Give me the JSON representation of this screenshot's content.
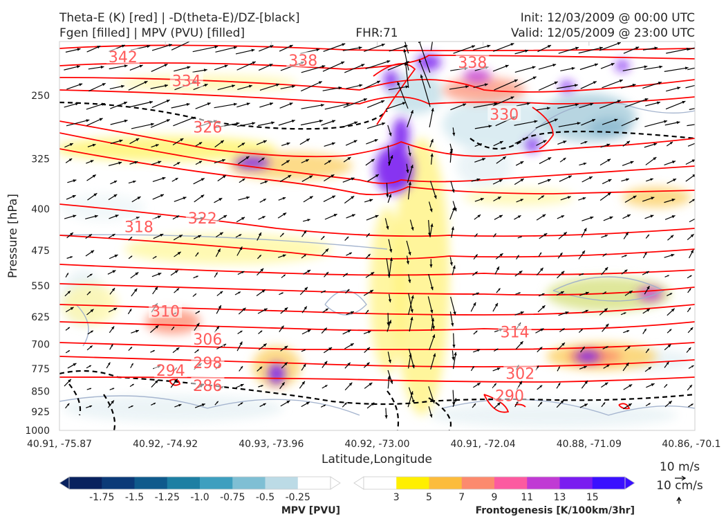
{
  "header": {
    "title_left_1": "Theta-E (K) [red] | -D(theta-E)/DZ-[black]",
    "title_left_2": "Fgen [filled] | MPV (PVU) [filled]",
    "title_center": "FHR:71",
    "title_right_1": "Init: 12/03/2009 @ 00:00 UTC",
    "title_right_2": "Valid: 12/05/2009 @ 23:00 UTC"
  },
  "chart_data": {
    "type": "cross-section",
    "xlabel": "Latitude,Longitude",
    "ylabel": "Pressure [hPa]",
    "x_ticks": [
      "40.91, -75.87",
      "40.92, -74.92",
      "40.93, -73.96",
      "40.92, -73.00",
      "40.91, -72.04",
      "40.88, -71.09",
      "40.86, -70.1"
    ],
    "y_ticks": [
      250,
      325,
      400,
      475,
      550,
      625,
      700,
      775,
      850,
      925,
      1000
    ],
    "ylim": [
      1000,
      200
    ],
    "y_scale": "log-pressure",
    "theta_e_labels": [
      {
        "label": "342",
        "xi": 0.6,
        "p": 213
      },
      {
        "label": "338",
        "xi": 2.3,
        "p": 216
      },
      {
        "label": "338",
        "xi": 3.9,
        "p": 218
      },
      {
        "label": "334",
        "xi": 1.2,
        "p": 235
      },
      {
        "label": "330",
        "xi": 4.2,
        "p": 270
      },
      {
        "label": "326",
        "xi": 1.4,
        "p": 285
      },
      {
        "label": "322",
        "xi": 1.35,
        "p": 415
      },
      {
        "label": "318",
        "xi": 0.75,
        "p": 430
      },
      {
        "label": "310",
        "xi": 1.0,
        "p": 610
      },
      {
        "label": "306",
        "xi": 1.4,
        "p": 685
      },
      {
        "label": "314",
        "xi": 4.3,
        "p": 665
      },
      {
        "label": "298",
        "xi": 1.4,
        "p": 755
      },
      {
        "label": "294",
        "xi": 1.05,
        "p": 780
      },
      {
        "label": "302",
        "xi": 4.35,
        "p": 790
      },
      {
        "label": "286",
        "xi": 1.4,
        "p": 830
      },
      {
        "label": "290",
        "xi": 4.25,
        "p": 865
      }
    ],
    "mpv_colorbar": {
      "label": "MPV [PVU]",
      "ticks": [
        "-1.75",
        "-1.5",
        "-1.25",
        "-1.0",
        "-0.75",
        "-0.5",
        "-0.25"
      ],
      "colors": [
        "#08215e",
        "#0b3a78",
        "#0f5a8c",
        "#1d7fa3",
        "#3e9fbf",
        "#7fbfd4",
        "#bcdbe6",
        "#ffffff"
      ]
    },
    "fgen_colorbar": {
      "label": "Frontogenesis [K/100km/3hr]",
      "ticks": [
        "3",
        "5",
        "7",
        "9",
        "11",
        "13",
        "15"
      ],
      "colors": [
        "#ffffff",
        "#ffef00",
        "#fcbc3c",
        "#fc8a6e",
        "#fc5aa0",
        "#c03ad4",
        "#7a1cf0",
        "#3a10ff"
      ]
    },
    "vector_key": {
      "label_1": "10 m/s",
      "label_2": "10 cm/s"
    },
    "grid": false
  }
}
